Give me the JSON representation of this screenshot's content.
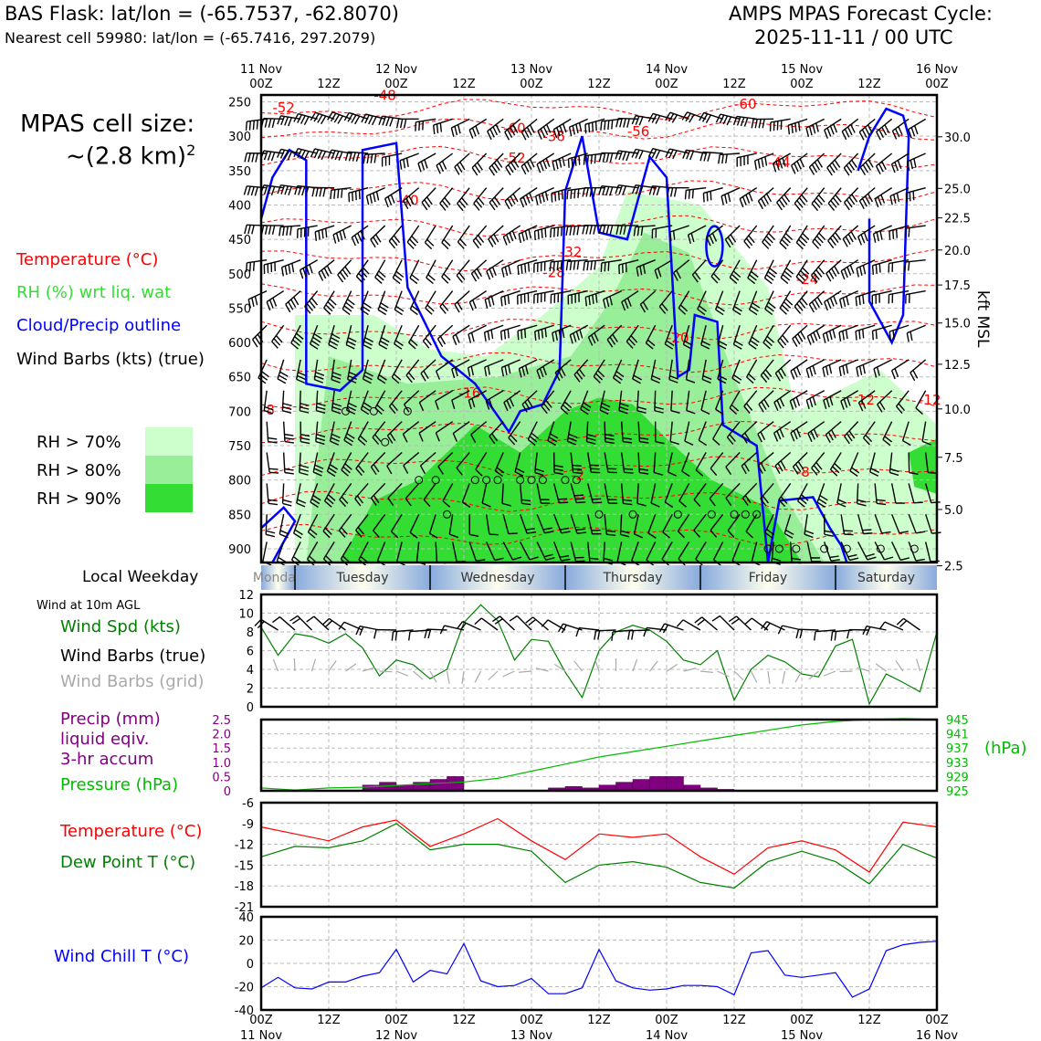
{
  "header": {
    "station_title": "BAS Flask: lat/lon = (-65.7537, -62.8070)",
    "nearest_cell": "Nearest cell 59980: lat/lon = (-65.7416, 297.2079)",
    "forecast_line1": "AMPS MPAS Forecast Cycle:",
    "forecast_line2": "2025-11-11 / 00 UTC"
  },
  "cell_size": {
    "line1": "MPAS cell size:",
    "line2": "~(2.8 km)",
    "exp": "2"
  },
  "colors": {
    "temperature": "#ff0000",
    "rh_legend": "#33dd33",
    "cloud": "#0000ff",
    "wind_speed": "#008000",
    "wind_grid": "#aaaaaa",
    "precip": "#800080",
    "pressure": "#00bb00",
    "dewpoint": "#008000",
    "windchill": "#0000ff",
    "rh70": "#ccffcc",
    "rh80": "#99ee99",
    "rh90": "#33dd33"
  },
  "legend": {
    "temperature": "Temperature (°C)",
    "rh": "RH (%) wrt liq. wat",
    "cloud": "Cloud/Precip outline",
    "wind": "Wind Barbs (kts) (true)",
    "rh70": "RH > 70%",
    "rh80": "RH > 80%",
    "rh90": "RH > 90%"
  },
  "time_axis": {
    "top_labels": [
      [
        "11 Nov",
        "00Z"
      ],
      [
        "",
        "12Z"
      ],
      [
        "12 Nov",
        "00Z"
      ],
      [
        "",
        "12Z"
      ],
      [
        "13 Nov",
        "00Z"
      ],
      [
        "",
        "12Z"
      ],
      [
        "14 Nov",
        "00Z"
      ],
      [
        "",
        "12Z"
      ],
      [
        "15 Nov",
        "00Z"
      ],
      [
        "",
        "12Z"
      ],
      [
        "16 Nov",
        "00Z"
      ]
    ],
    "bottom_labels": [
      [
        "00Z",
        "11 Nov"
      ],
      [
        "12Z",
        ""
      ],
      [
        "00Z",
        "12 Nov"
      ],
      [
        "12Z",
        ""
      ],
      [
        "00Z",
        "13 Nov"
      ],
      [
        "12Z",
        ""
      ],
      [
        "00Z",
        "14 Nov"
      ],
      [
        "12Z",
        ""
      ],
      [
        "00Z",
        "15 Nov"
      ],
      [
        "12Z",
        ""
      ],
      [
        "00Z",
        "16 Nov"
      ]
    ],
    "hours_total": 120
  },
  "weekday": {
    "label": "Local Weekday",
    "days": [
      "Monday",
      "Tuesday",
      "Wednesday",
      "Thursday",
      "Friday",
      "Saturday"
    ]
  },
  "cross_section": {
    "pressure_ticks": [
      250,
      300,
      350,
      400,
      450,
      500,
      550,
      600,
      650,
      700,
      750,
      800,
      850,
      900
    ],
    "kft_ticks": [
      "30.0",
      "25.0",
      "22.5",
      "20.0",
      "17.5",
      "15.0",
      "12.5",
      "10.0",
      "7.5",
      "5.0",
      "2.5"
    ],
    "kft_label": "kft MSL",
    "temp_contour_labels": [
      "-52",
      "-60",
      "-56",
      "-60",
      "-48",
      "-52",
      "-44",
      "-40",
      "-36",
      "-32",
      "-28",
      "-24",
      "-20",
      "-16",
      "-12",
      "-12",
      "-8",
      "-8",
      "-2"
    ]
  },
  "surface_wind": {
    "title": "Wind at 10m AGL",
    "label_speed": "Wind Spd (kts)",
    "label_barbs": "Wind Barbs (true)",
    "label_grid": "Wind Barbs (grid)",
    "yticks": [
      "12",
      "10",
      "8",
      "6",
      "4",
      "2",
      "0"
    ]
  },
  "precip_pressure": {
    "label_precip1": "Precip (mm)",
    "label_precip2": "liquid eqiv.",
    "label_precip3": "3-hr accum",
    "label_pressure": "Pressure (hPa)",
    "left_ticks": [
      "2.5",
      "2.0",
      "1.5",
      "1.0",
      "0.5",
      "0"
    ],
    "right_ticks": [
      "945",
      "941",
      "937",
      "933",
      "929",
      "925"
    ],
    "unit": "(hPa)"
  },
  "temp_panel": {
    "label_temp": "Temperature (°C)",
    "label_dew": "Dew Point T (°C)",
    "yticks": [
      "-6",
      "-9",
      "-12",
      "-15",
      "-18",
      "-21"
    ]
  },
  "chill_panel": {
    "label": "Wind Chill T (°C)",
    "yticks": [
      "40",
      "20",
      "0",
      "-20",
      "-40"
    ]
  },
  "chart_data": [
    {
      "type": "line",
      "title": "Wind at 10m AGL",
      "ylabel": "Wind Spd (kts)",
      "x_hours": [
        0,
        3,
        6,
        9,
        12,
        15,
        18,
        21,
        24,
        27,
        30,
        33,
        36,
        39,
        42,
        45,
        48,
        51,
        54,
        57,
        60,
        63,
        66,
        69,
        72,
        75,
        78,
        81,
        84,
        87,
        90,
        93,
        96,
        99,
        102,
        105,
        108,
        111,
        114,
        117,
        120
      ],
      "series": [
        {
          "name": "Wind Spd (kts)",
          "values": [
            8.5,
            5.5,
            7.8,
            7.5,
            6.8,
            7.8,
            6.3,
            3.3,
            5.0,
            4.5,
            3.0,
            4.0,
            9.0,
            10.9,
            9.2,
            5.0,
            7.2,
            7.0,
            3.7,
            1.0,
            6.0,
            8.0,
            8.7,
            8.2,
            7.0,
            5.0,
            4.5,
            6.0,
            0.7,
            4.0,
            5.5,
            4.8,
            3.5,
            3.2,
            6.5,
            7.2,
            0.3,
            3.5,
            2.6,
            1.6,
            8.0
          ]
        }
      ],
      "ylim": [
        0,
        12
      ]
    },
    {
      "type": "bar",
      "title": "Precip (mm) liquid eqiv. 3-hr accum",
      "x_hours": [
        21,
        24,
        27,
        30,
        33,
        36,
        54,
        57,
        60,
        63,
        66,
        69,
        72,
        75,
        78,
        81,
        84
      ],
      "values": [
        0.2,
        0.3,
        0.2,
        0.3,
        0.4,
        0.5,
        0.1,
        0.15,
        0.1,
        0.2,
        0.3,
        0.4,
        0.5,
        0.5,
        0.2,
        0.1,
        0.05
      ],
      "ylim": [
        0,
        2.5
      ]
    },
    {
      "type": "line",
      "title": "Pressure (hPa)",
      "x_hours": [
        0,
        6,
        12,
        18,
        24,
        30,
        36,
        42,
        48,
        54,
        60,
        66,
        72,
        78,
        84,
        90,
        96,
        102,
        108,
        114,
        120
      ],
      "values": [
        925.8,
        925.2,
        925.8,
        926.0,
        926.5,
        927.0,
        927.5,
        928.5,
        930.5,
        932.5,
        934.5,
        936.0,
        937.5,
        939.0,
        940.5,
        942.0,
        943.5,
        944.5,
        945.0,
        945.3,
        945.0
      ],
      "ylim": [
        925,
        945
      ]
    },
    {
      "type": "line",
      "title": "Temperature / Dew Point",
      "x_hours": [
        0,
        6,
        12,
        18,
        24,
        30,
        36,
        42,
        48,
        54,
        60,
        66,
        72,
        78,
        84,
        90,
        96,
        102,
        108,
        114,
        120
      ],
      "series": [
        {
          "name": "Temperature (°C)",
          "values": [
            -9.5,
            -10.5,
            -11.5,
            -9.5,
            -8.5,
            -12.3,
            -10.5,
            -8.3,
            -11.5,
            -14.2,
            -10.5,
            -11.0,
            -10.5,
            -13.8,
            -16.3,
            -12.5,
            -11.5,
            -12.8,
            -16.0,
            -8.8,
            -9.5
          ]
        },
        {
          "name": "Dew Point T (°C)",
          "values": [
            -13.8,
            -12.3,
            -12.5,
            -11.5,
            -9.0,
            -12.8,
            -12.0,
            -12.0,
            -13.0,
            -17.5,
            -15.0,
            -14.5,
            -15.3,
            -17.5,
            -18.3,
            -14.5,
            -13.0,
            -14.5,
            -17.7,
            -12.0,
            -14.0
          ]
        }
      ],
      "ylim": [
        -21,
        -6
      ]
    },
    {
      "type": "line",
      "title": "Wind Chill T (°C)",
      "x_hours": [
        0,
        3,
        6,
        9,
        12,
        15,
        18,
        21,
        24,
        27,
        30,
        33,
        36,
        39,
        42,
        45,
        48,
        51,
        54,
        57,
        60,
        63,
        66,
        69,
        72,
        75,
        78,
        81,
        84,
        87,
        90,
        93,
        96,
        99,
        102,
        105,
        108,
        111,
        114,
        117,
        120
      ],
      "series": [
        {
          "name": "Wind Chill T (°C)",
          "values": [
            -21,
            -12,
            -21,
            -22,
            -16,
            -16,
            -11,
            -8,
            12,
            -16,
            -6,
            -9,
            17,
            -15,
            -20,
            -19,
            -13,
            -26,
            -26,
            -21,
            12,
            -15,
            -21,
            -23,
            -22,
            -19,
            -19,
            -20,
            -27,
            9,
            11,
            -10,
            -12,
            -10,
            -8,
            -29,
            -22,
            11,
            16,
            18,
            19
          ]
        }
      ],
      "ylim": [
        -40,
        40
      ]
    }
  ]
}
